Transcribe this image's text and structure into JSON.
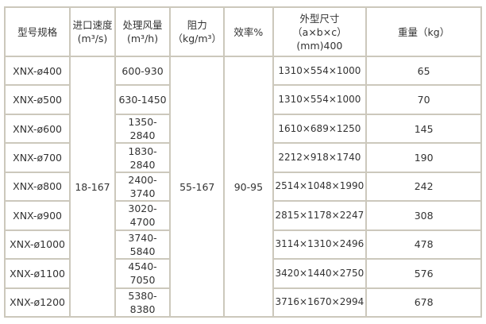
{
  "headers": [
    "型号规格",
    "进口速度\n(m³/s)",
    "处理风量\n(m³/h)",
    "阻力\n（kg/m³）",
    "效率%",
    "外型尺寸\n（a×b×c）\n(mm)400",
    "重量（kg）"
  ],
  "shared": {
    "inlet_speed": "18-167",
    "resistance": "55-167",
    "efficiency": "90-95"
  },
  "rows": [
    {
      "model": "XNX-ø400",
      "flow": "600-930",
      "dims": "1310×554×1000",
      "weight": "65"
    },
    {
      "model": "XNX-ø500",
      "flow": "630-1450",
      "dims": "1310×554×1000",
      "weight": "70"
    },
    {
      "model": "XNX-ø600",
      "flow": "1350-2840",
      "dims": "1610×689×1250",
      "weight": "145"
    },
    {
      "model": "XNX-ø700",
      "flow": "1830-2840",
      "dims": "2212×918×1740",
      "weight": "190"
    },
    {
      "model": "XNX-ø800",
      "flow": "2400-3740",
      "dims": "2514×1048×1990",
      "weight": "242"
    },
    {
      "model": "XNX-ø900",
      "flow": "3020-4700",
      "dims": "2815×1178×2247",
      "weight": "308"
    },
    {
      "model": "XNX-ø1000",
      "flow": "3740-5840",
      "dims": "3114×1310×2496",
      "weight": "478"
    },
    {
      "model": "XNX-ø1100",
      "flow": "4540-7050",
      "dims": "3420×1440×2750",
      "weight": "576"
    },
    {
      "model": "XNX-ø1200",
      "flow": "5380-8380",
      "dims": "3716×1670×2994",
      "weight": "678"
    }
  ]
}
